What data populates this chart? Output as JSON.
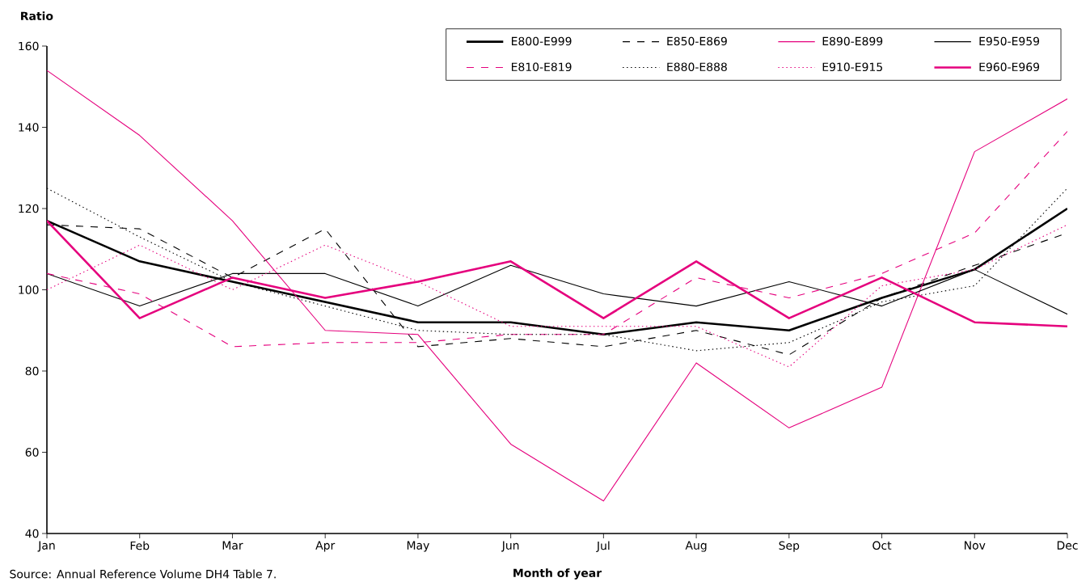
{
  "chart_data": {
    "type": "line",
    "xlabel": "Month of year",
    "ylabel": "Ratio",
    "categories": [
      "Jan",
      "Feb",
      "Mar",
      "Apr",
      "May",
      "Jun",
      "Jul",
      "Aug",
      "Sep",
      "Oct",
      "Nov",
      "Dec"
    ],
    "ylim": [
      40,
      160
    ],
    "yticks": [
      40,
      60,
      80,
      100,
      120,
      140,
      160
    ],
    "grid": false,
    "legend": "top right",
    "marker": "none",
    "annotations": [
      "Source: Annual Reference Volume DH4 Table 7."
    ],
    "series": [
      {
        "name": "E800-E999",
        "color": "#000000",
        "line_style": "solid",
        "values": [
          117,
          107,
          102,
          97,
          92,
          92,
          89,
          92,
          90,
          98,
          105,
          120
        ]
      },
      {
        "name": "E850-E869",
        "color": "#000000",
        "line_style": "dashed",
        "values": [
          116,
          115,
          103,
          115,
          86,
          88,
          86,
          90,
          84,
          98,
          106,
          114
        ]
      },
      {
        "name": "E890-E899",
        "color": "#e5007d",
        "line_style": "solid",
        "values": [
          154,
          138,
          117,
          90,
          89,
          62,
          48,
          82,
          66,
          76,
          134,
          147
        ]
      },
      {
        "name": "E950-E959",
        "color": "#000000",
        "line_style": "solid",
        "values": [
          104,
          96,
          104,
          104,
          96,
          106,
          99,
          96,
          102,
          96,
          105,
          94
        ]
      },
      {
        "name": "E810-E819",
        "color": "#e5007d",
        "line_style": "dashed",
        "values": [
          104,
          99,
          86,
          87,
          87,
          89,
          89,
          103,
          98,
          104,
          114,
          139
        ]
      },
      {
        "name": "E880-E888",
        "color": "#000000",
        "line_style": "dotted",
        "values": [
          125,
          113,
          102,
          96,
          90,
          89,
          89,
          85,
          87,
          97,
          101,
          125
        ]
      },
      {
        "name": "E910-E915",
        "color": "#e5007d",
        "line_style": "dotted",
        "values": [
          100,
          111,
          100,
          111,
          102,
          91,
          91,
          91,
          81,
          101,
          105,
          116
        ]
      },
      {
        "name": "E960-E969",
        "color": "#e5007d",
        "line_style": "solid",
        "values": [
          117,
          93,
          103,
          98,
          102,
          107,
          93,
          107,
          93,
          103,
          92,
          91
        ]
      }
    ]
  }
}
